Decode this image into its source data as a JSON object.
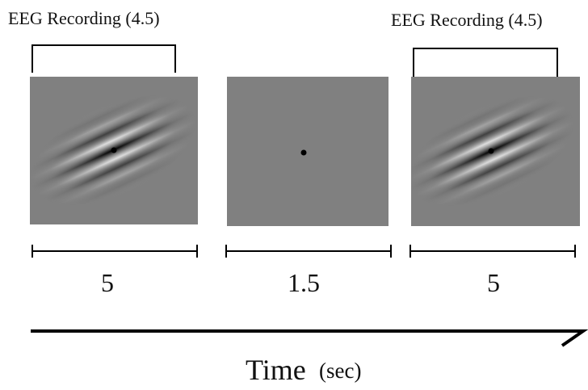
{
  "trial": [
    {
      "recording_label": "EEG Recording (4.5)",
      "duration": "5"
    },
    {
      "duration": "1.5"
    },
    {
      "recording_label": "EEG Recording (4.5)",
      "duration": "5"
    }
  ],
  "axis": {
    "label": "Time",
    "unit": "(sec)"
  }
}
